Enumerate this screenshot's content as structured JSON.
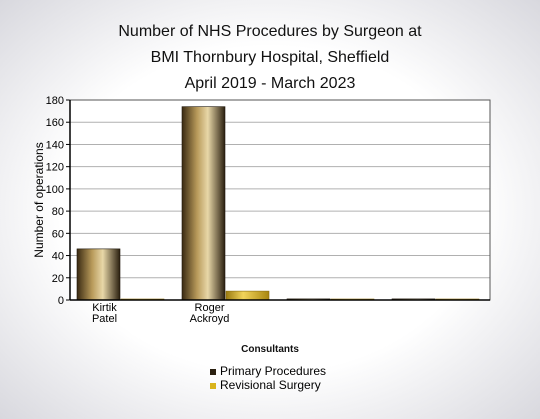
{
  "chart_data": {
    "type": "bar",
    "title_lines": [
      "Number of NHS Procedures by Surgeon at",
      "BMI Thornbury Hospital, Sheffield",
      "April 2019 - March 2023"
    ],
    "xlabel": "Consultants",
    "ylabel": "Number of operations",
    "ylim": [
      0,
      180
    ],
    "yticks": [
      0,
      20,
      40,
      60,
      80,
      100,
      120,
      140,
      160,
      180
    ],
    "grid": true,
    "legend_position": "bottom-center",
    "categories": [
      [
        "Kirtik",
        "Patel"
      ],
      [
        "Roger",
        "Ackroyd"
      ],
      [
        "",
        ""
      ],
      [
        "",
        ""
      ]
    ],
    "series": [
      {
        "name": "Primary Procedures",
        "values": [
          46,
          174,
          1,
          1
        ],
        "color": "#2a1f0f"
      },
      {
        "name": "Revisional Surgery",
        "values": [
          0,
          8,
          0,
          0
        ],
        "color": "#d9b31c"
      }
    ]
  }
}
